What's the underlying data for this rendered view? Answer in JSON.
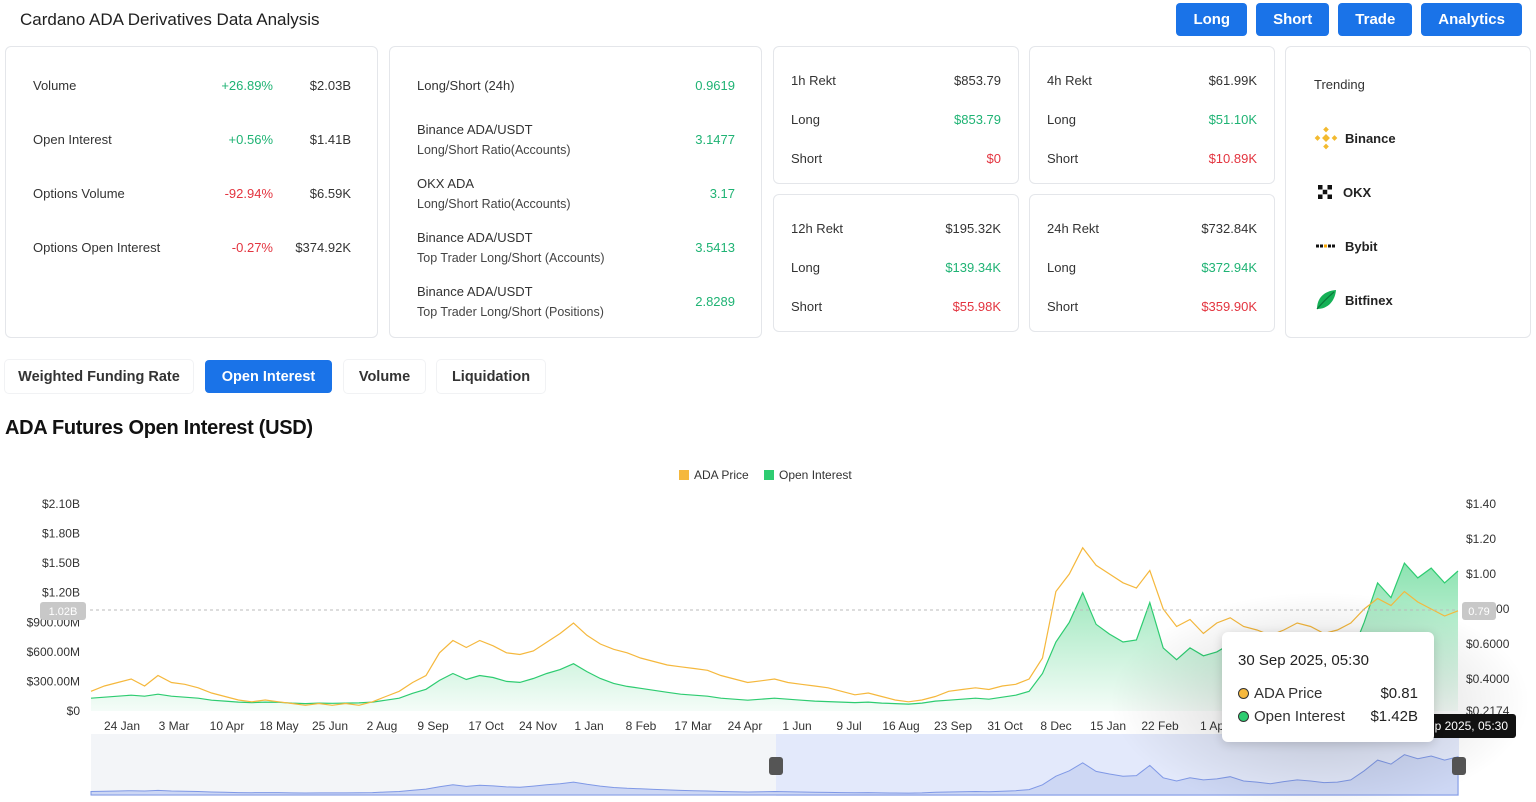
{
  "header": {
    "title": "Cardano ADA Derivatives Data Analysis"
  },
  "top_buttons": [
    "Long",
    "Short",
    "Trade",
    "Analytics"
  ],
  "stats": [
    {
      "label": "Volume",
      "change": "+26.89%",
      "value": "$2.03B",
      "dir": "pos"
    },
    {
      "label": "Open Interest",
      "change": "+0.56%",
      "value": "$1.41B",
      "dir": "pos"
    },
    {
      "label": "Options Volume",
      "change": "-92.94%",
      "value": "$6.59K",
      "dir": "neg"
    },
    {
      "label": "Options Open Interest",
      "change": "-0.27%",
      "value": "$374.92K",
      "dir": "neg"
    }
  ],
  "ratios": [
    {
      "line1": "Long/Short (24h)",
      "line2": "",
      "value": "0.9619"
    },
    {
      "line1": "Binance ADA/USDT",
      "line2": "Long/Short Ratio(Accounts)",
      "value": "3.1477"
    },
    {
      "line1": "OKX ADA",
      "line2": "Long/Short Ratio(Accounts)",
      "value": "3.17"
    },
    {
      "line1": "Binance ADA/USDT",
      "line2": "Top Trader Long/Short (Accounts)",
      "value": "3.5413"
    },
    {
      "line1": "Binance ADA/USDT",
      "line2": "Top Trader Long/Short (Positions)",
      "value": "2.8289"
    }
  ],
  "rekt": [
    {
      "title": "1h Rekt",
      "total": "$853.79",
      "long_label": "Long",
      "long": "$853.79",
      "short_label": "Short",
      "short": "$0"
    },
    {
      "title": "4h Rekt",
      "total": "$61.99K",
      "long_label": "Long",
      "long": "$51.10K",
      "short_label": "Short",
      "short": "$10.89K"
    },
    {
      "title": "12h Rekt",
      "total": "$195.32K",
      "long_label": "Long",
      "long": "$139.34K",
      "short_label": "Short",
      "short": "$55.98K"
    },
    {
      "title": "24h Rekt",
      "total": "$732.84K",
      "long_label": "Long",
      "long": "$372.94K",
      "short_label": "Short",
      "short": "$359.90K"
    }
  ],
  "trending": {
    "title": "Trending",
    "items": [
      {
        "name": "Binance",
        "icon": "binance-icon"
      },
      {
        "name": "OKX",
        "icon": "okx-icon"
      },
      {
        "name": "Bybit",
        "icon": "bybit-icon"
      },
      {
        "name": "Bitfinex",
        "icon": "bitfinex-icon"
      }
    ]
  },
  "tabs": [
    {
      "label": "Weighted Funding Rate",
      "active": false
    },
    {
      "label": "Open Interest",
      "active": true
    },
    {
      "label": "Volume",
      "active": false
    },
    {
      "label": "Liquidation",
      "active": false
    }
  ],
  "section_title": "ADA Futures Open Interest (USD)",
  "colors": {
    "accent": "#1a73e8",
    "price": "#f5b83d",
    "open_interest": "#2ecc71",
    "positive": "#1fb374",
    "negative": "#e3343f"
  },
  "chart_data": {
    "type": "area",
    "legend": [
      "ADA Price",
      "Open Interest"
    ],
    "legend_position": "top-center",
    "x_ticks": [
      "24 Jan",
      "3 Mar",
      "10 Apr",
      "18 May",
      "25 Jun",
      "2 Aug",
      "9 Sep",
      "17 Oct",
      "24 Nov",
      "1 Jan",
      "8 Feb",
      "17 Mar",
      "24 Apr",
      "1 Jun",
      "9 Jul",
      "16 Aug",
      "23 Sep",
      "31 Oct",
      "8 Dec",
      "15 Jan",
      "22 Feb",
      "1 Ap"
    ],
    "y_left_ticks": [
      "$0",
      "$300.00M",
      "$600.00M",
      "$900.00M",
      "$1.20B",
      "$1.50B",
      "$1.80B",
      "$2.10B"
    ],
    "y_right_ticks": [
      "$0.2174",
      "$0.4000",
      "$0.6000",
      "$0.8000",
      "$1.00",
      "$1.20",
      "$1.40"
    ],
    "y_left_range": [
      0,
      2100000000
    ],
    "y_right_range": [
      0.2174,
      1.4
    ],
    "crosshair_left_label": "1.02B",
    "crosshair_right_label": "0.79",
    "x_crosshair_label": "30 Sep 2025, 05:30",
    "series": [
      {
        "name": "ADA Price",
        "axis": "right",
        "values": [
          0.33,
          0.36,
          0.38,
          0.4,
          0.36,
          0.42,
          0.38,
          0.37,
          0.35,
          0.32,
          0.3,
          0.28,
          0.27,
          0.28,
          0.27,
          0.26,
          0.25,
          0.26,
          0.25,
          0.26,
          0.25,
          0.27,
          0.3,
          0.33,
          0.38,
          0.42,
          0.55,
          0.62,
          0.58,
          0.62,
          0.59,
          0.55,
          0.54,
          0.56,
          0.61,
          0.66,
          0.72,
          0.65,
          0.6,
          0.57,
          0.55,
          0.52,
          0.5,
          0.48,
          0.47,
          0.46,
          0.45,
          0.42,
          0.4,
          0.38,
          0.39,
          0.4,
          0.38,
          0.37,
          0.36,
          0.35,
          0.33,
          0.31,
          0.32,
          0.3,
          0.28,
          0.27,
          0.28,
          0.3,
          0.33,
          0.34,
          0.35,
          0.34,
          0.36,
          0.37,
          0.4,
          0.52,
          0.9,
          1.0,
          1.15,
          1.05,
          1.0,
          0.95,
          0.92,
          1.02,
          0.8,
          0.7,
          0.74,
          0.66,
          0.72,
          0.75,
          0.7,
          0.68,
          0.65,
          0.68,
          0.72,
          0.7,
          0.66,
          0.68,
          0.72,
          0.8,
          0.86,
          0.82,
          0.9,
          0.84,
          0.8,
          0.76,
          0.79
        ]
      },
      {
        "name": "Open Interest",
        "axis": "left",
        "values": [
          130,
          140,
          150,
          160,
          150,
          170,
          150,
          140,
          130,
          110,
          100,
          90,
          85,
          90,
          88,
          80,
          75,
          80,
          78,
          80,
          82,
          90,
          110,
          130,
          180,
          220,
          310,
          380,
          320,
          360,
          340,
          300,
          290,
          330,
          380,
          420,
          480,
          400,
          330,
          280,
          250,
          230,
          210,
          190,
          170,
          160,
          150,
          130,
          120,
          110,
          120,
          130,
          120,
          110,
          100,
          95,
          90,
          85,
          90,
          80,
          75,
          70,
          80,
          100,
          110,
          120,
          130,
          120,
          140,
          160,
          200,
          380,
          700,
          900,
          1200,
          880,
          780,
          700,
          720,
          1100,
          640,
          520,
          640,
          560,
          600,
          680,
          520,
          480,
          420,
          500,
          560,
          520,
          460,
          480,
          560,
          900,
          1300,
          1150,
          1500,
          1350,
          1450,
          1300,
          1420
        ]
      }
    ]
  },
  "tooltip": {
    "title": "30 Sep 2025, 05:30",
    "rows": [
      {
        "label": "ADA Price",
        "value": "$0.81",
        "color": "#f5b83d"
      },
      {
        "label": "Open Interest",
        "value": "$1.42B",
        "color": "#2ecc71"
      }
    ]
  }
}
